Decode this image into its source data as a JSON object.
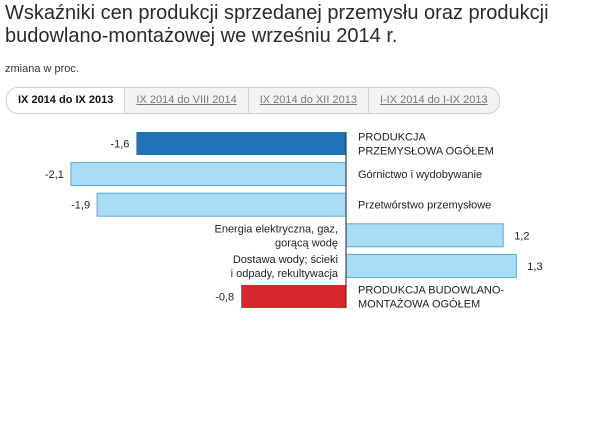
{
  "title": "Wskaźniki cen produkcji sprzedanej przemysłu oraz produkcji budowlano-montażowej we wrześniu 2014 r.",
  "subtitle": "zmiana w proc.",
  "tabs": [
    {
      "label": "IX 2014 do IX 2013",
      "active": true
    },
    {
      "label": "IX 2014 do VIII 2014",
      "active": false
    },
    {
      "label": "IX 2014 do XII 2013",
      "active": false
    },
    {
      "label": "I-IX 2014 do I-IX 2013",
      "active": false
    }
  ],
  "colors": {
    "industry_total": "#1f73b7",
    "sections": "#a9ddf5",
    "construction_total": "#d7262c",
    "section_border": "#5aaad6"
  },
  "chart_data": {
    "type": "bar",
    "orientation": "horizontal",
    "categories": [
      [
        "PRODUKCJA",
        "PRZEMYSŁOWA OGÓŁEM"
      ],
      [
        "Górnictwo i wydobywanie"
      ],
      [
        "Przetwórstwo przemysłowe"
      ],
      [
        "Energia elektryczna, gaz,",
        "gorącą wodę"
      ],
      [
        "Dostawa wody; ścieki",
        "i odpady, rekultywacja"
      ],
      [
        "PRODUKCJA BUDOWLANO-",
        "MONTAŻOWA OGÓŁEM"
      ]
    ],
    "values": [
      -1.6,
      -2.1,
      -1.9,
      1.2,
      1.3,
      -0.8
    ],
    "value_labels": [
      "-1,6",
      "-2,1",
      "-1,9",
      "1,2",
      "1,3",
      "-0,8"
    ],
    "bar_colors": [
      "industry_total",
      "sections",
      "sections",
      "sections",
      "sections",
      "construction_total"
    ],
    "xlim": [
      -2.1,
      1.3
    ],
    "grid": false,
    "legend": "none"
  }
}
